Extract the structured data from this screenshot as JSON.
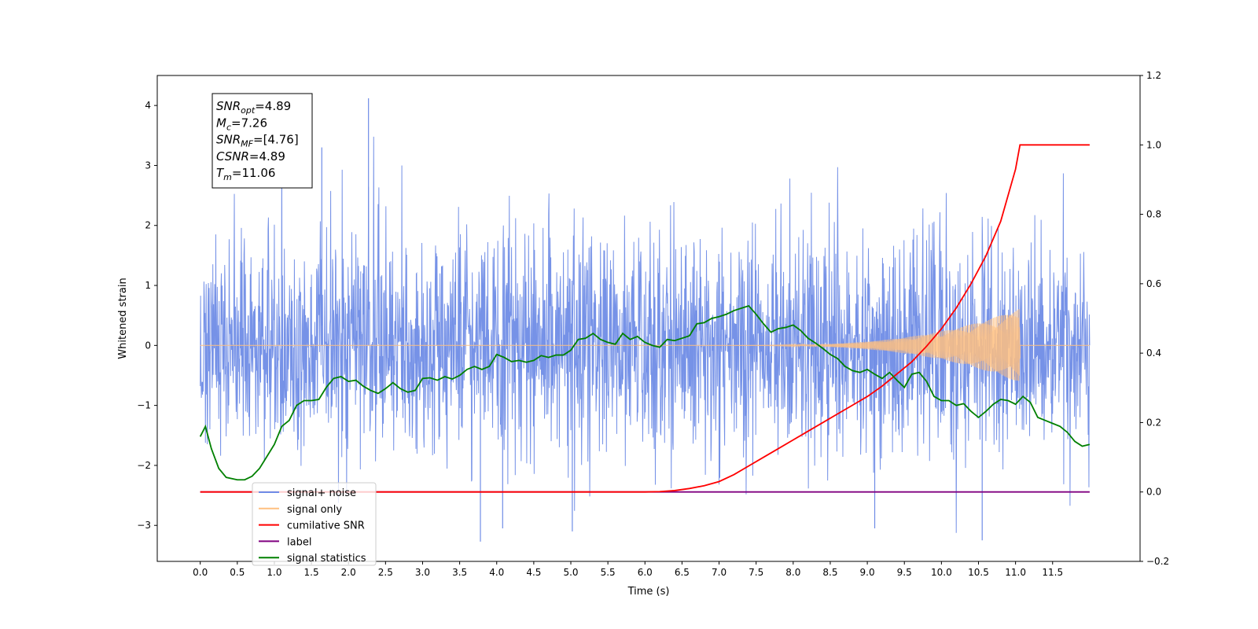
{
  "chart_data": {
    "type": "line",
    "xlabel": "Time (s)",
    "ylabel_left": "Whitened strain",
    "ylabel_right": "",
    "xlim": [
      -0.58,
      12.68
    ],
    "ylim_left": [
      -3.6,
      4.5
    ],
    "ylim_right": [
      -0.2,
      1.2
    ],
    "x_ticks": [
      0.0,
      0.5,
      1.0,
      1.5,
      2.0,
      2.5,
      3.0,
      3.5,
      4.0,
      4.5,
      5.0,
      5.5,
      6.0,
      6.5,
      7.0,
      7.5,
      8.0,
      8.5,
      9.0,
      9.5,
      10.0,
      10.5,
      11.0,
      11.5
    ],
    "x_tick_labels": [
      "0.0",
      "0.5",
      "1.0",
      "1.5",
      "2.0",
      "2.5",
      "3.0",
      "3.5",
      "4.0",
      "4.5",
      "5.0",
      "5.5",
      "6.0",
      "6.5",
      "7.0",
      "7.5",
      "8.0",
      "8.5",
      "9.0",
      "9.5",
      "10.0",
      "10.5",
      "11.0",
      "11.5"
    ],
    "y_ticks_left": [
      -3,
      -2,
      -1,
      0,
      1,
      2,
      3,
      4
    ],
    "y_tick_labels_left": [
      "−3",
      "−2",
      "−1",
      "0",
      "1",
      "2",
      "3",
      "4"
    ],
    "y_ticks_right": [
      -0.2,
      0.0,
      0.2,
      0.4,
      0.6,
      0.8,
      1.0,
      1.2
    ],
    "y_tick_labels_right": [
      "−0.2",
      "0.0",
      "0.2",
      "0.4",
      "0.6",
      "0.8",
      "1.0",
      "1.2"
    ],
    "grid": false,
    "legend_position": "lower-left",
    "annotation": [
      {
        "base": "SNR",
        "sub": "opt",
        "rest": "=4.89"
      },
      {
        "base": "M",
        "sub": "c",
        "rest": "=7.26"
      },
      {
        "base": "SNR",
        "sub": "MF",
        "rest": "=[4.76]"
      },
      {
        "base": "CSNR",
        "sub": "",
        "rest": "=4.89"
      },
      {
        "base": "T",
        "sub": "m",
        "rest": "=11.06"
      }
    ],
    "series": [
      {
        "name": "signal+ noise",
        "axis": "left",
        "color": "#6f8ce6",
        "t_start": 0.0,
        "t_end": 12.0,
        "noise_sigma": 0.95,
        "max": 4.12,
        "min": -3.27
      },
      {
        "name": "signal only",
        "axis": "left",
        "color": "#ffc080",
        "t_start": 0.0,
        "t_end": 12.0,
        "chirp_start": 7.0,
        "merger_time": 11.06,
        "peak_amplitude": 0.62
      },
      {
        "name": "cumilative SNR",
        "axis": "right",
        "color": "#ff0000",
        "x": [
          0.0,
          6.0,
          6.2,
          6.4,
          6.6,
          6.8,
          7.0,
          7.2,
          7.4,
          7.6,
          7.8,
          8.0,
          8.2,
          8.4,
          8.6,
          8.8,
          9.0,
          9.2,
          9.4,
          9.6,
          9.8,
          10.0,
          10.2,
          10.4,
          10.6,
          10.8,
          11.0,
          11.06,
          12.0
        ],
        "y": [
          0.0,
          0.0,
          0.001,
          0.004,
          0.01,
          0.018,
          0.03,
          0.05,
          0.075,
          0.1,
          0.125,
          0.15,
          0.175,
          0.2,
          0.225,
          0.25,
          0.275,
          0.305,
          0.34,
          0.375,
          0.42,
          0.47,
          0.53,
          0.6,
          0.68,
          0.78,
          0.93,
          1.0,
          1.0
        ]
      },
      {
        "name": "label",
        "axis": "right",
        "color": "#800080",
        "x": [
          0.0,
          11.06,
          11.06,
          12.0
        ],
        "y": [
          0.0,
          0.0,
          0.0,
          0.0
        ]
      },
      {
        "name": "signal statistics",
        "axis": "left",
        "color": "#008000",
        "x": [
          0.0,
          0.07,
          0.15,
          0.25,
          0.35,
          0.5,
          0.6,
          0.7,
          0.8,
          0.9,
          1.0,
          1.1,
          1.2,
          1.3,
          1.4,
          1.5,
          1.6,
          1.7,
          1.8,
          1.9,
          2.0,
          2.1,
          2.2,
          2.3,
          2.4,
          2.5,
          2.6,
          2.7,
          2.8,
          2.9,
          3.0,
          3.1,
          3.2,
          3.3,
          3.4,
          3.5,
          3.6,
          3.7,
          3.8,
          3.9,
          4.0,
          4.1,
          4.2,
          4.3,
          4.4,
          4.5,
          4.6,
          4.7,
          4.8,
          4.9,
          5.0,
          5.1,
          5.2,
          5.3,
          5.4,
          5.5,
          5.6,
          5.7,
          5.8,
          5.9,
          6.0,
          6.1,
          6.2,
          6.3,
          6.4,
          6.5,
          6.6,
          6.7,
          6.8,
          6.9,
          7.0,
          7.1,
          7.2,
          7.3,
          7.4,
          7.5,
          7.6,
          7.7,
          7.8,
          7.9,
          8.0,
          8.1,
          8.2,
          8.3,
          8.4,
          8.5,
          8.6,
          8.7,
          8.8,
          8.9,
          9.0,
          9.1,
          9.2,
          9.3,
          9.4,
          9.5,
          9.6,
          9.7,
          9.8,
          9.9,
          10.0,
          10.1,
          10.2,
          10.3,
          10.4,
          10.5,
          10.6,
          10.7,
          10.8,
          10.9,
          11.0,
          11.1,
          11.2,
          11.3,
          11.4,
          11.5,
          11.6,
          11.7,
          11.8,
          11.9,
          12.0
        ],
        "y": [
          -1.52,
          -1.35,
          -1.72,
          -2.05,
          -2.2,
          -2.24,
          -2.24,
          -2.18,
          -2.05,
          -1.85,
          -1.65,
          -1.35,
          -1.25,
          -1.0,
          -0.92,
          -0.92,
          -0.9,
          -0.7,
          -0.55,
          -0.52,
          -0.6,
          -0.58,
          -0.68,
          -0.75,
          -0.8,
          -0.72,
          -0.62,
          -0.72,
          -0.78,
          -0.75,
          -0.55,
          -0.54,
          -0.58,
          -0.52,
          -0.56,
          -0.5,
          -0.4,
          -0.35,
          -0.4,
          -0.35,
          -0.15,
          -0.2,
          -0.27,
          -0.25,
          -0.28,
          -0.25,
          -0.17,
          -0.2,
          -0.16,
          -0.16,
          -0.08,
          0.1,
          0.12,
          0.2,
          0.1,
          0.05,
          0.02,
          0.2,
          0.1,
          0.15,
          0.05,
          0.0,
          -0.03,
          0.1,
          0.08,
          0.12,
          0.16,
          0.36,
          0.38,
          0.45,
          0.48,
          0.52,
          0.58,
          0.62,
          0.66,
          0.52,
          0.36,
          0.22,
          0.28,
          0.3,
          0.34,
          0.25,
          0.12,
          0.04,
          -0.05,
          -0.15,
          -0.22,
          -0.35,
          -0.42,
          -0.45,
          -0.4,
          -0.48,
          -0.55,
          -0.45,
          -0.58,
          -0.7,
          -0.48,
          -0.45,
          -0.6,
          -0.85,
          -0.92,
          -0.92,
          -1.0,
          -0.97,
          -1.1,
          -1.2,
          -1.1,
          -0.98,
          -0.9,
          -0.92,
          -0.98,
          -0.85,
          -0.95,
          -1.2,
          -1.25,
          -1.3,
          -1.35,
          -1.45,
          -1.6,
          -1.68,
          -1.65
        ]
      }
    ]
  }
}
